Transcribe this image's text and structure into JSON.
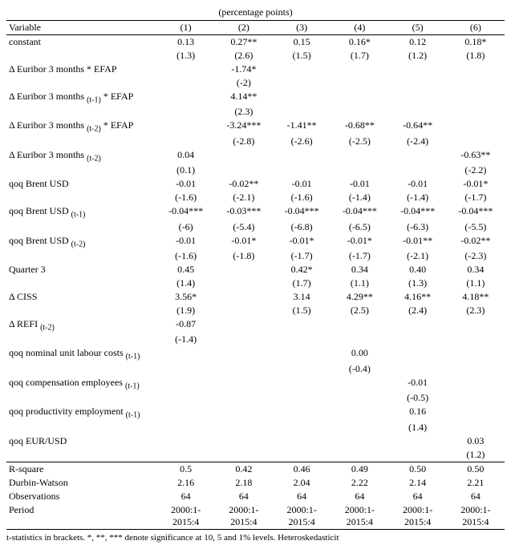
{
  "subtitle": "(percentage points)",
  "header": {
    "variable": "Variable",
    "cols": [
      "(1)",
      "(2)",
      "(3)",
      "(4)",
      "(5)",
      "(6)"
    ]
  },
  "rows": [
    {
      "label": "constant",
      "vals": [
        "0.13",
        "0.27**",
        "0.15",
        "0.16*",
        "0.12",
        "0.18*"
      ],
      "tstats": [
        "(1.3)",
        "(2.6)",
        "(1.5)",
        "(1.7)",
        "(1.2)",
        "(1.8)"
      ]
    },
    {
      "label": "Δ Euribor 3 months * EFAP",
      "vals": [
        "",
        "-1.74*",
        "",
        "",
        "",
        ""
      ],
      "tstats": [
        "",
        "(-2)",
        "",
        "",
        "",
        ""
      ]
    },
    {
      "label": "Δ Euribor 3 months (t-1) * EFAP",
      "sub1": "(t-1)",
      "vals": [
        "",
        "4.14**",
        "",
        "",
        "",
        ""
      ],
      "tstats": [
        "",
        "(2.3)",
        "",
        "",
        "",
        ""
      ]
    },
    {
      "label": "Δ Euribor 3 months (t-2) * EFAP",
      "sub1": "(t-2)",
      "vals": [
        "",
        "-3.24***",
        "-1.41**",
        "-0.68**",
        "-0.64**",
        ""
      ],
      "tstats": [
        "",
        "(-2.8)",
        "(-2.6)",
        "(-2.5)",
        "(-2.4)",
        ""
      ]
    },
    {
      "label": "Δ Euribor 3 months (t-2)",
      "sub1": "(t-2)",
      "vals": [
        "0.04",
        "",
        "",
        "",
        "",
        "-0.63**"
      ],
      "tstats": [
        "(0.1)",
        "",
        "",
        "",
        "",
        "(-2.2)"
      ]
    },
    {
      "label": "qoq Brent USD",
      "vals": [
        "-0.01",
        "-0.02**",
        "-0.01",
        "-0.01",
        "-0.01",
        "-0.01*"
      ],
      "tstats": [
        "(-1.6)",
        "(-2.1)",
        "(-1.6)",
        "(-1.4)",
        "(-1.4)",
        "(-1.7)"
      ]
    },
    {
      "label": "qoq Brent USD (t-1)",
      "sub1": "(t-1)",
      "vals": [
        "-0.04***",
        "-0.03***",
        "-0.04***",
        "-0.04***",
        "-0.04***",
        "-0.04***"
      ],
      "tstats": [
        "(-6)",
        "(-5.4)",
        "(-6.8)",
        "(-6.5)",
        "(-6.3)",
        "(-5.5)"
      ]
    },
    {
      "label": "qoq Brent USD (t-2)",
      "sub1": "(t-2)",
      "vals": [
        "-0.01",
        "-0.01*",
        "-0.01*",
        "-0.01*",
        "-0.01**",
        "-0.02**"
      ],
      "tstats": [
        "(-1.6)",
        "(-1.8)",
        "(-1.7)",
        "(-1.7)",
        "(-2.1)",
        "(-2.3)"
      ]
    },
    {
      "label": "Quarter 3",
      "vals": [
        "0.45",
        "",
        "0.42*",
        "0.34",
        "0.40",
        "0.34"
      ],
      "tstats": [
        "(1.4)",
        "",
        "(1.7)",
        "(1.1)",
        "(1.3)",
        "(1.1)"
      ]
    },
    {
      "label": "Δ CISS",
      "vals": [
        "3.56*",
        "",
        "3.14",
        "4.29**",
        "4.16**",
        "4.18**"
      ],
      "tstats": [
        "(1.9)",
        "",
        "(1.5)",
        "(2.5)",
        "(2.4)",
        "(2.3)"
      ]
    },
    {
      "label": "Δ REFI (t-2)",
      "sub1": "(t-2)",
      "vals": [
        "-0.87",
        "",
        "",
        "",
        "",
        ""
      ],
      "tstats": [
        "(-1.4)",
        "",
        "",
        "",
        "",
        ""
      ]
    },
    {
      "label": "qoq nominal unit labour costs (t-1)",
      "sub1": "(t-1)",
      "vals": [
        "",
        "",
        "",
        "0.00",
        "",
        ""
      ],
      "tstats": [
        "",
        "",
        "",
        "(-0.4)",
        "",
        ""
      ]
    },
    {
      "label": "qoq compensation employees (t-1)",
      "sub1": "(t-1)",
      "vals": [
        "",
        "",
        "",
        "",
        "-0.01",
        ""
      ],
      "tstats": [
        "",
        "",
        "",
        "",
        "(-0.5)",
        ""
      ]
    },
    {
      "label": "qoq productivity employment (t-1)",
      "sub1": "(t-1)",
      "vals": [
        "",
        "",
        "",
        "",
        "0.16",
        ""
      ],
      "tstats": [
        "",
        "",
        "",
        "",
        "(1.4)",
        ""
      ]
    },
    {
      "label": "qoq EUR/USD",
      "vals": [
        "",
        "",
        "",
        "",
        "",
        "0.03"
      ],
      "tstats": [
        "",
        "",
        "",
        "",
        "",
        "(1.2)"
      ]
    }
  ],
  "stats": [
    {
      "label": "R-square",
      "vals": [
        "0.5",
        "0.42",
        "0.46",
        "0.49",
        "0.50",
        "0.50"
      ]
    },
    {
      "label": "Durbin-Watson",
      "vals": [
        "2.16",
        "2.18",
        "2.04",
        "2.22",
        "2.14",
        "2.21"
      ]
    },
    {
      "label": "Observations",
      "vals": [
        "64",
        "64",
        "64",
        "64",
        "64",
        "64"
      ]
    },
    {
      "label": "Period",
      "vals": [
        "2000:1-2015:4",
        "2000:1-2015:4",
        "2000:1-2015:4",
        "2000:1-2015:4",
        "2000:1-2015:4",
        "2000:1-2015:4"
      ]
    }
  ],
  "footnote": "t-statistics in brackets. *, **, *** denote significance at 10, 5 and 1% levels. Heteroskedasticit"
}
